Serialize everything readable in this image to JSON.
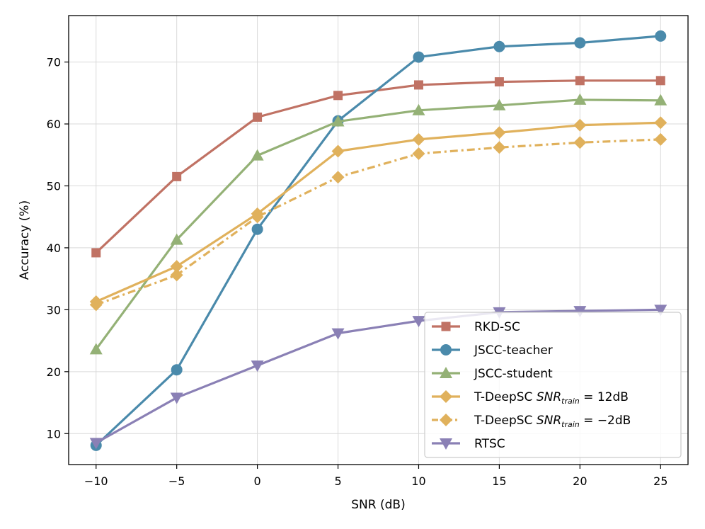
{
  "chart_data": {
    "type": "line",
    "title": "",
    "xlabel": "SNR (dB)",
    "ylabel": "Accuracy (%)",
    "x": [
      -10,
      -5,
      0,
      5,
      10,
      15,
      20,
      25
    ],
    "xlim": [
      -11.7,
      26.7
    ],
    "ylim": [
      5,
      77.5
    ],
    "xticks": [
      -10,
      -5,
      0,
      5,
      10,
      15,
      20,
      25
    ],
    "xtick_labels": [
      "−10",
      "−5",
      "0",
      "5",
      "10",
      "15",
      "20",
      "25"
    ],
    "yticks": [
      10,
      20,
      30,
      40,
      50,
      60,
      70
    ],
    "ytick_labels": [
      "10",
      "20",
      "30",
      "40",
      "50",
      "60",
      "70"
    ],
    "grid": true,
    "legend_position": "bottom-right",
    "series": [
      {
        "name": "RKD-SC",
        "legend_label": "RKD-SC",
        "color": "#c07264",
        "marker": "square",
        "linestyle": "solid",
        "values": [
          39.2,
          51.5,
          61.1,
          64.6,
          66.3,
          66.8,
          67.0,
          67.0
        ]
      },
      {
        "name": "JSCC-teacher",
        "legend_label": "JSCC-teacher",
        "color": "#4a8aab",
        "marker": "circle",
        "linestyle": "solid",
        "values": [
          8.1,
          20.3,
          43.0,
          60.5,
          70.8,
          72.5,
          73.1,
          74.2
        ]
      },
      {
        "name": "JSCC-student",
        "legend_label": "JSCC-student",
        "color": "#94b176",
        "marker": "triangle-up",
        "linestyle": "solid",
        "values": [
          23.6,
          41.3,
          54.9,
          60.4,
          62.2,
          63.0,
          63.9,
          63.8
        ]
      },
      {
        "name": "T-DeepSC SNRtrain=12dB",
        "legend_label": "T-DeepSC ",
        "legend_math": {
          "base": "SNR",
          "sub": "train",
          "rest": " = 12dB"
        },
        "color": "#e0b15c",
        "marker": "diamond",
        "linestyle": "solid",
        "values": [
          31.3,
          37.0,
          45.5,
          55.6,
          57.5,
          58.6,
          59.8,
          60.2
        ]
      },
      {
        "name": "T-DeepSC SNRtrain=-2dB",
        "legend_label": "T-DeepSC ",
        "legend_math": {
          "base": "SNR",
          "sub": "train",
          "rest": " = −2dB"
        },
        "color": "#e0b15c",
        "marker": "diamond",
        "linestyle": "dashdot",
        "values": [
          30.8,
          35.6,
          45.0,
          51.4,
          55.2,
          56.2,
          57.0,
          57.5
        ]
      },
      {
        "name": "RTSC",
        "legend_label": "RTSC",
        "color": "#8a80b5",
        "marker": "triangle-down",
        "linestyle": "solid",
        "values": [
          8.5,
          15.8,
          21.0,
          26.2,
          28.2,
          29.6,
          29.8,
          30.0
        ]
      }
    ]
  }
}
